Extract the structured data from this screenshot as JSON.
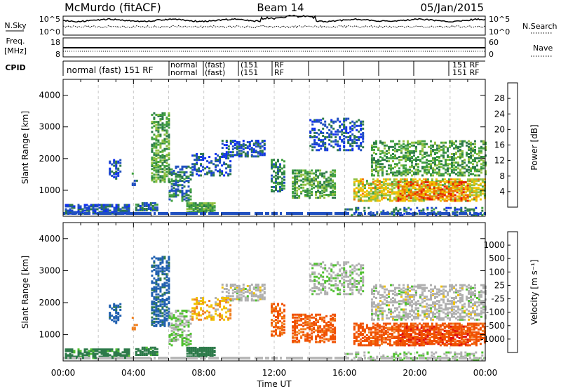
{
  "header": {
    "station": "McMurdo (fitACF)",
    "beam": "Beam 14",
    "date": "05/Jan/2015"
  },
  "panels_top": {
    "nsky_label": "N.Sky",
    "nsearch_label": "N.Search",
    "nsky_ticks": [
      "10^5",
      "10^0"
    ],
    "nsearch_ticks": [
      "10^5",
      "10^0"
    ],
    "freq_label": "Freq.",
    "freq_unit": "[MHz]",
    "freq_ticks": [
      "18",
      "8"
    ],
    "nave_label": "Nave",
    "nave_ticks": [
      "60",
      "0"
    ],
    "cpid_label": "CPID",
    "cpid_segments": [
      {
        "row1": "normal (fast) 151 RF",
        "row2": ""
      },
      {
        "row1": "normal",
        "row2": "normal"
      },
      {
        "row1": "(fast)",
        "row2": "(fast)"
      },
      {
        "row1": "(151",
        "row2": "(151"
      },
      {
        "row1": "RF",
        "row2": "RF"
      },
      {
        "row1": "151 RF",
        "row2": "151 RF"
      }
    ]
  },
  "chart_data": [
    {
      "type": "heatmap",
      "title": "Power",
      "xlabel": "Time UT",
      "ylabel": "Slant Range [km]",
      "x_ticks": [
        "00:00",
        "04:00",
        "08:00",
        "12:00",
        "16:00",
        "20:00",
        "00:00"
      ],
      "xlim_hours": [
        0,
        24
      ],
      "y_ticks": [
        1000,
        2000,
        3000,
        4000
      ],
      "ylim": [
        180,
        4500
      ],
      "colorbar": {
        "label": "Power [dB]",
        "ticks": [
          "4",
          "8",
          "12",
          "16",
          "20",
          "24",
          "28"
        ],
        "range": [
          0,
          30
        ],
        "colors": [
          "#1030f0",
          "#2050c0",
          "#2d7a4a",
          "#40a040",
          "#90c040",
          "#f0c000",
          "#f07000",
          "#e82000"
        ]
      }
    },
    {
      "type": "heatmap",
      "title": "Velocity",
      "xlabel": "Time UT",
      "ylabel": "Slant Range [km]",
      "x_ticks": [
        "00:00",
        "04:00",
        "08:00",
        "12:00",
        "16:00",
        "20:00",
        "00:00"
      ],
      "xlim_hours": [
        0,
        24
      ],
      "y_ticks": [
        1000,
        2000,
        3000,
        4000
      ],
      "ylim": [
        180,
        4500
      ],
      "colorbar": {
        "label": "Velocity [m s⁻¹]",
        "ticks": [
          "1000",
          "500",
          "100",
          "25",
          "-25",
          "-100",
          "-500",
          "-1000"
        ],
        "colors": [
          "#1030d0",
          "#2060b0",
          "#2d7a4a",
          "#50c030",
          "#b0b0b0",
          "#f0c000",
          "#f08020",
          "#f05000",
          "#e01010"
        ]
      }
    }
  ],
  "scatter_regions": [
    {
      "t0": 0.1,
      "t1": 3.8,
      "r0": 300,
      "r1": 600,
      "pv": 6,
      "vv": 100,
      "d": 0.75
    },
    {
      "t0": 4.1,
      "t1": 5.3,
      "r0": 400,
      "r1": 650,
      "pv": 8,
      "vv": 100,
      "d": 0.8
    },
    {
      "t0": 2.6,
      "t1": 3.2,
      "r0": 1400,
      "r1": 2000,
      "pv": 6,
      "vv": 500,
      "d": 0.5
    },
    {
      "t0": 3.9,
      "t1": 4.2,
      "r0": 1200,
      "r1": 1600,
      "pv": 10,
      "vv": -200,
      "d": 0.5
    },
    {
      "t0": 5.0,
      "t1": 6.0,
      "r0": 1300,
      "r1": 3500,
      "pv": 14,
      "vv": 400,
      "d": 0.55
    },
    {
      "t0": 6.0,
      "t1": 7.3,
      "r0": 700,
      "r1": 1800,
      "pv": 10,
      "vv": 25,
      "d": 0.5
    },
    {
      "t0": 7.0,
      "t1": 8.6,
      "r0": 350,
      "r1": 650,
      "pv": 14,
      "vv": 200,
      "d": 0.85
    },
    {
      "t0": 9.0,
      "t1": 11.5,
      "r0": 2100,
      "r1": 2600,
      "pv": 6,
      "vv": 0,
      "d": 0.5
    },
    {
      "t0": 7.3,
      "t1": 9.5,
      "r0": 1500,
      "r1": 2200,
      "pv": 6,
      "vv": -50,
      "d": 0.4
    },
    {
      "t0": 11.8,
      "t1": 12.6,
      "r0": 1000,
      "r1": 2000,
      "pv": 10,
      "vv": -300,
      "d": 0.55
    },
    {
      "t0": 13.0,
      "t1": 15.5,
      "r0": 800,
      "r1": 1700,
      "pv": 14,
      "vv": -400,
      "d": 0.55
    },
    {
      "t0": 14.0,
      "t1": 17.0,
      "r0": 2300,
      "r1": 3300,
      "pv": 6,
      "vv": 10,
      "d": 0.35
    },
    {
      "t0": 16.5,
      "t1": 24.0,
      "r0": 700,
      "r1": 1400,
      "pv": 20,
      "vv": -450,
      "d": 0.6
    },
    {
      "t0": 19.0,
      "t1": 23.0,
      "r0": 700,
      "r1": 1300,
      "pv": 26,
      "vv": -600,
      "d": 0.5
    },
    {
      "t0": 17.5,
      "t1": 24.0,
      "r0": 1500,
      "r1": 2600,
      "pv": 14,
      "vv": 0,
      "d": 0.45
    },
    {
      "t0": 16.0,
      "t1": 24.0,
      "r0": 250,
      "r1": 500,
      "pv": 8,
      "vv": 25,
      "d": 0.3
    }
  ]
}
